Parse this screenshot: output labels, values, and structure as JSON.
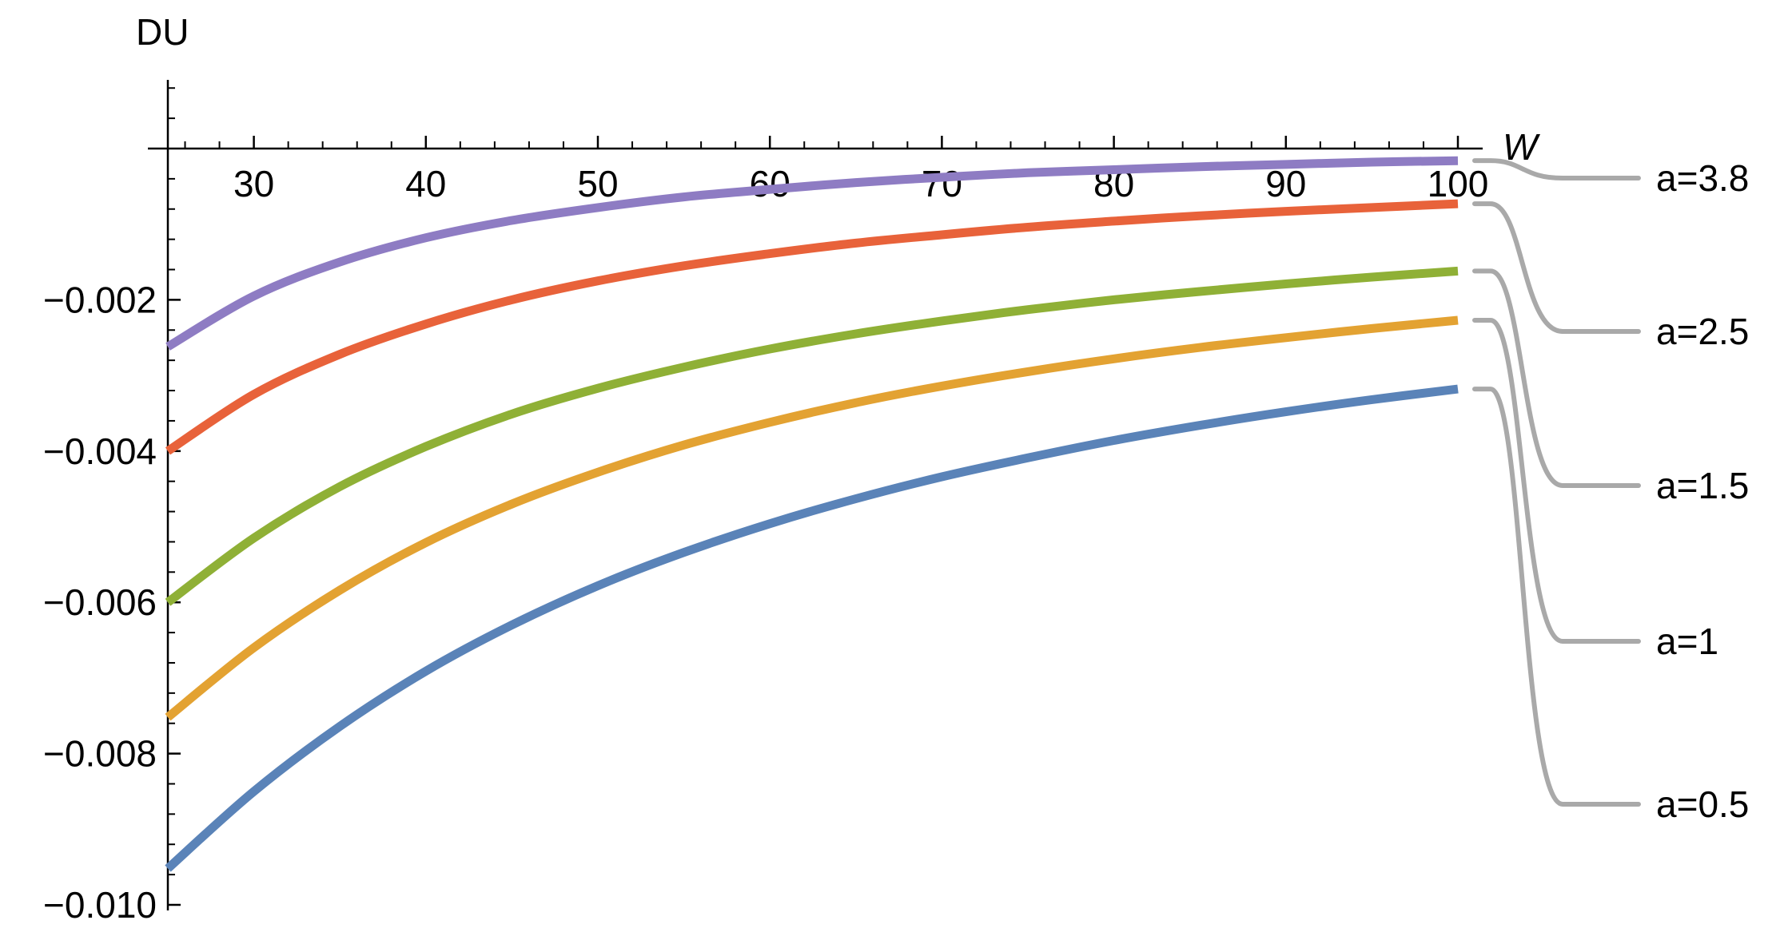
{
  "chart_data": {
    "type": "line",
    "xlabel": "W",
    "ylabel": "DU",
    "xlim": [
      25,
      101
    ],
    "ylim": [
      -0.0101,
      0.0008
    ],
    "x_ticks": [
      "30",
      "40",
      "50",
      "60",
      "70",
      "80",
      "90",
      "100"
    ],
    "y_ticks": [
      "-0.002",
      "-0.004",
      "-0.006",
      "-0.008",
      "-0.010"
    ],
    "x_tick_values": [
      30,
      40,
      50,
      60,
      70,
      80,
      90,
      100
    ],
    "y_tick_values": [
      -0.002,
      -0.004,
      -0.006,
      -0.008,
      -0.01
    ],
    "grid": false,
    "legend_placement": "right, callout labels",
    "x": [
      25,
      30,
      35,
      40,
      45,
      50,
      55,
      60,
      65,
      70,
      75,
      80,
      85,
      90,
      95,
      100
    ],
    "series": [
      {
        "name": "a=3.8",
        "color": "#8e7cc3",
        "values": [
          -0.00262,
          -0.00195,
          -0.0015,
          -0.00118,
          -0.00095,
          -0.00078,
          -0.00064,
          -0.00054,
          -0.00045,
          -0.00038,
          -0.00032,
          -0.00028,
          -0.00024,
          -0.00021,
          -0.00018,
          -0.00016
        ]
      },
      {
        "name": "a=2.5",
        "color": "#e8623a",
        "values": [
          -0.004,
          -0.00325,
          -0.00272,
          -0.00232,
          -0.002,
          -0.00175,
          -0.00155,
          -0.00139,
          -0.00125,
          -0.00114,
          -0.00104,
          -0.00096,
          -0.00089,
          -0.00083,
          -0.00078,
          -0.00073
        ]
      },
      {
        "name": "a=1.5",
        "color": "#8fb036",
        "values": [
          -0.006,
          -0.00515,
          -0.00447,
          -0.00394,
          -0.00351,
          -0.00317,
          -0.00289,
          -0.00265,
          -0.00245,
          -0.00228,
          -0.00213,
          -0.002,
          -0.00189,
          -0.00179,
          -0.0017,
          -0.00162
        ]
      },
      {
        "name": "a=1",
        "color": "#e3a232",
        "values": [
          -0.00752,
          -0.0066,
          -0.00584,
          -0.00521,
          -0.0047,
          -0.00428,
          -0.00392,
          -0.00362,
          -0.00336,
          -0.00314,
          -0.00295,
          -0.00278,
          -0.00263,
          -0.0025,
          -0.00238,
          -0.00227
        ]
      },
      {
        "name": "a=0.5",
        "color": "#5a83b8",
        "values": [
          -0.00952,
          -0.0085,
          -0.00764,
          -0.00691,
          -0.0063,
          -0.00578,
          -0.00534,
          -0.00496,
          -0.00463,
          -0.00434,
          -0.00409,
          -0.00386,
          -0.00366,
          -0.00348,
          -0.00332,
          -0.00318
        ]
      }
    ]
  }
}
